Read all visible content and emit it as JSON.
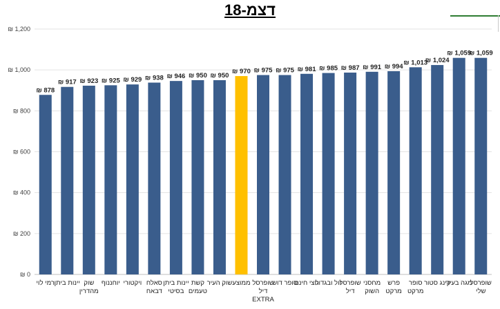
{
  "chart_data": {
    "type": "bar",
    "title": "דצמ-18",
    "xlabel": "",
    "ylabel": "",
    "ylim": [
      0,
      1200
    ],
    "yticks": [
      0,
      200,
      400,
      600,
      800,
      1000,
      1200
    ],
    "ytick_labels": [
      "₪ 0",
      "₪ 200",
      "₪ 400",
      "₪ 600",
      "₪ 800",
      "₪ 1,000",
      "₪ 1,200"
    ],
    "grid": true,
    "legend": "none",
    "colors": {
      "default": "#3a5d8c",
      "highlight": "#ffc000"
    },
    "highlight_index": 9,
    "categories": [
      [
        "רמי לוי"
      ],
      [
        "יינות ביתן"
      ],
      [
        "שוק",
        "מהדרין"
      ],
      [
        "יוחננוף"
      ],
      [
        "ויקטורי"
      ],
      [
        "סאלח",
        "דבאח"
      ],
      [
        "יינות ביתן",
        "בסיטי"
      ],
      [
        "קשת",
        "טעמים"
      ],
      [
        "שוק העיר"
      ],
      [
        "ממוצע"
      ],
      [
        "שופרסל",
        "דיל",
        "EXTRA"
      ],
      [
        "סופר דוש"
      ],
      [
        "חצי חינם"
      ],
      [
        "זול ובגדול"
      ],
      [
        "שופרסל",
        "דיל"
      ],
      [
        "מחסני",
        "השוק"
      ],
      [
        "פרש",
        "מרקט"
      ],
      [
        "סופר",
        "מרקט"
      ],
      [
        "קינג סטור"
      ],
      [
        "מגה בעיר"
      ],
      [
        "שופרסל",
        "שלי"
      ]
    ],
    "values": [
      878,
      917,
      923,
      925,
      929,
      938,
      946,
      950,
      950,
      970,
      975,
      975,
      981,
      985,
      987,
      991,
      994,
      1013,
      1024,
      1059,
      1059
    ],
    "data_labels": [
      "₪ 878",
      "₪ 917",
      "₪ 923",
      "₪ 925",
      "₪ 929",
      "₪ 938",
      "₪ 946",
      "₪ 950",
      "₪ 950",
      "₪ 970",
      "₪ 975",
      "₪ 975",
      "₪ 981",
      "₪ 985",
      "₪ 987",
      "₪ 991",
      "₪ 994",
      "₪ 1,013",
      "₪ 1,024",
      "₪ 1,059",
      "₪ 1,059"
    ]
  }
}
